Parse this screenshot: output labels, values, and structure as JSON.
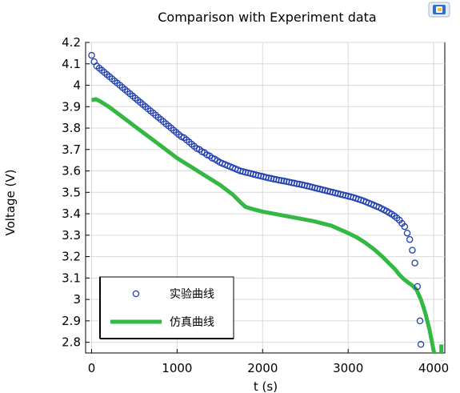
{
  "app": {
    "logo_icon": "comsol-logo-icon"
  },
  "chart_data": {
    "type": "line",
    "title": "Comparison with Experiment data",
    "xlabel": "t (s)",
    "ylabel": "Voltage (V)",
    "xlim": [
      -70,
      4130
    ],
    "ylim": [
      2.75,
      4.2
    ],
    "xticks": [
      0,
      1000,
      2000,
      3000,
      4000
    ],
    "yticks": [
      2.8,
      2.9,
      3.0,
      3.1,
      3.2,
      3.3,
      3.4,
      3.5,
      3.6,
      3.7,
      3.8,
      3.9,
      4.0,
      4.1,
      4.2
    ],
    "xtick_labels": [
      "0",
      "1000",
      "2000",
      "3000",
      "4000"
    ],
    "ytick_labels": [
      "2.8",
      "2.9",
      "3",
      "3.1",
      "3.2",
      "3.3",
      "3.4",
      "3.5",
      "3.6",
      "3.7",
      "3.8",
      "3.9",
      "4",
      "4.1",
      "4.2"
    ],
    "grid": true,
    "legend_position": "bottom-left",
    "series": [
      {
        "name": "实验曲线",
        "kind": "markers",
        "marker": "open-circle",
        "color": "#1f3fb0",
        "x": [
          0,
          30,
          60,
          90,
          120,
          150,
          180,
          210,
          240,
          270,
          300,
          330,
          360,
          390,
          420,
          450,
          480,
          510,
          540,
          570,
          600,
          630,
          660,
          690,
          720,
          750,
          780,
          810,
          840,
          870,
          900,
          930,
          960,
          990,
          1020,
          1050,
          1080,
          1110,
          1140,
          1170,
          1200,
          1230,
          1260,
          1290,
          1320,
          1350,
          1380,
          1410,
          1440,
          1470,
          1500,
          1530,
          1560,
          1590,
          1620,
          1650,
          1680,
          1710,
          1740,
          1770,
          1800,
          1830,
          1860,
          1890,
          1920,
          1950,
          1980,
          2010,
          2040,
          2070,
          2100,
          2130,
          2160,
          2190,
          2220,
          2250,
          2280,
          2310,
          2340,
          2370,
          2400,
          2430,
          2460,
          2490,
          2520,
          2550,
          2580,
          2610,
          2640,
          2670,
          2700,
          2730,
          2760,
          2790,
          2820,
          2850,
          2880,
          2910,
          2940,
          2970,
          3000,
          3030,
          3060,
          3090,
          3120,
          3150,
          3180,
          3210,
          3240,
          3270,
          3300,
          3330,
          3360,
          3390,
          3420,
          3450,
          3480,
          3510,
          3540,
          3570,
          3600,
          3630,
          3660,
          3690,
          3720,
          3750,
          3780,
          3810,
          3840,
          3850
        ],
        "y": [
          4.14,
          4.11,
          4.09,
          4.08,
          4.07,
          4.06,
          4.05,
          4.04,
          4.03,
          4.02,
          4.01,
          4.0,
          3.99,
          3.98,
          3.97,
          3.96,
          3.95,
          3.94,
          3.93,
          3.92,
          3.91,
          3.9,
          3.89,
          3.88,
          3.87,
          3.86,
          3.85,
          3.84,
          3.83,
          3.82,
          3.81,
          3.8,
          3.79,
          3.78,
          3.77,
          3.76,
          3.755,
          3.745,
          3.735,
          3.725,
          3.715,
          3.705,
          3.7,
          3.69,
          3.685,
          3.675,
          3.67,
          3.66,
          3.655,
          3.648,
          3.64,
          3.635,
          3.63,
          3.625,
          3.62,
          3.615,
          3.61,
          3.605,
          3.6,
          3.597,
          3.594,
          3.591,
          3.588,
          3.585,
          3.582,
          3.579,
          3.576,
          3.573,
          3.57,
          3.567,
          3.565,
          3.562,
          3.56,
          3.557,
          3.555,
          3.553,
          3.55,
          3.548,
          3.545,
          3.543,
          3.54,
          3.538,
          3.535,
          3.533,
          3.53,
          3.527,
          3.524,
          3.521,
          3.518,
          3.515,
          3.512,
          3.509,
          3.506,
          3.503,
          3.5,
          3.497,
          3.494,
          3.491,
          3.488,
          3.485,
          3.482,
          3.479,
          3.476,
          3.472,
          3.468,
          3.464,
          3.46,
          3.455,
          3.45,
          3.445,
          3.44,
          3.435,
          3.43,
          3.424,
          3.418,
          3.412,
          3.405,
          3.398,
          3.39,
          3.38,
          3.37,
          3.355,
          3.34,
          3.31,
          3.28,
          3.23,
          3.17,
          3.06,
          2.9,
          2.79
        ]
      },
      {
        "name": "仿真曲线",
        "kind": "line",
        "color": "#33b844",
        "x": [
          0,
          50,
          100,
          200,
          300,
          400,
          500,
          600,
          700,
          800,
          900,
          1000,
          1100,
          1200,
          1300,
          1400,
          1500,
          1600,
          1650,
          1700,
          1750,
          1800,
          1900,
          2000,
          2200,
          2400,
          2600,
          2800,
          3000,
          3100,
          3200,
          3300,
          3400,
          3500,
          3550,
          3600,
          3650,
          3700,
          3750,
          3800,
          3850,
          3900,
          3950,
          4000,
          4030,
          4060,
          4080,
          4090
        ],
        "y": [
          3.93,
          3.935,
          3.925,
          3.9,
          3.87,
          3.84,
          3.81,
          3.78,
          3.75,
          3.72,
          3.69,
          3.66,
          3.635,
          3.61,
          3.585,
          3.56,
          3.535,
          3.505,
          3.49,
          3.47,
          3.45,
          3.432,
          3.42,
          3.41,
          3.395,
          3.38,
          3.365,
          3.345,
          3.31,
          3.29,
          3.265,
          3.235,
          3.2,
          3.16,
          3.14,
          3.115,
          3.095,
          3.08,
          3.065,
          3.045,
          3.0,
          2.94,
          2.86,
          2.76,
          2.7,
          2.62,
          2.48,
          2.79
        ]
      }
    ]
  }
}
